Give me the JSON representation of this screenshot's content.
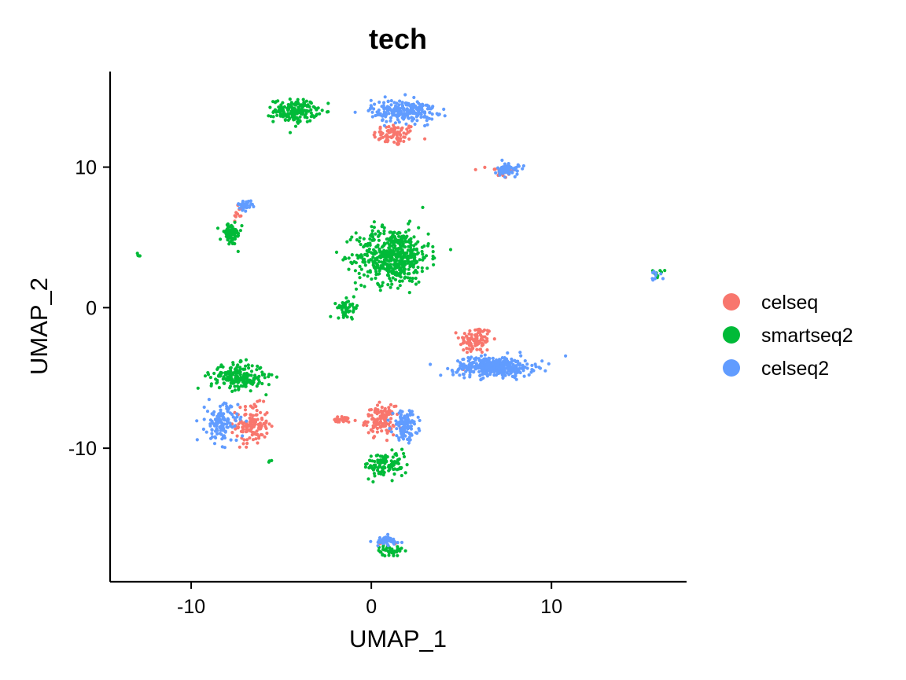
{
  "chart_data": {
    "type": "scatter",
    "title": "tech",
    "xlabel": "UMAP_1",
    "ylabel": "UMAP_2",
    "xlim": [
      -14.5,
      17.5
    ],
    "ylim": [
      -19.5,
      16.8
    ],
    "xticks": [
      -10,
      0,
      10
    ],
    "yticks": [
      -10,
      0,
      10
    ],
    "xtick_labels": [
      "-10",
      "0",
      "10"
    ],
    "ytick_labels": [
      "-10",
      "0",
      "10"
    ],
    "grid": false,
    "legend_position": "right",
    "colors": {
      "celseq": "#F8766D",
      "smartseq2": "#00BA38",
      "celseq2": "#619CFF"
    },
    "series": [
      {
        "name": "celseq",
        "color": "#F8766D",
        "clusters": [
          {
            "cx": 1.3,
            "cy": 12.3,
            "sx": 0.6,
            "sy": 0.4,
            "n": 80
          },
          {
            "cx": 7.2,
            "cy": 9.7,
            "sx": 0.35,
            "sy": 0.25,
            "n": 25
          },
          {
            "cx": -7.4,
            "cy": 6.7,
            "sx": 0.15,
            "sy": 0.4,
            "n": 10
          },
          {
            "cx": 5.8,
            "cy": -2.3,
            "sx": 0.45,
            "sy": 0.5,
            "n": 100
          },
          {
            "cx": -6.6,
            "cy": -8.3,
            "sx": 0.45,
            "sy": 0.7,
            "n": 130
          },
          {
            "cx": 0.5,
            "cy": -8.0,
            "sx": 0.4,
            "sy": 0.5,
            "n": 120
          },
          {
            "cx": -1.6,
            "cy": -8.0,
            "sx": 0.4,
            "sy": 0.12,
            "n": 25
          },
          {
            "cx": 1.0,
            "cy": -16.7,
            "sx": 0.35,
            "sy": 0.12,
            "n": 12
          }
        ]
      },
      {
        "name": "smartseq2",
        "color": "#00BA38",
        "clusters": [
          {
            "cx": -4.2,
            "cy": 14.0,
            "sx": 0.6,
            "sy": 0.4,
            "n": 170
          },
          {
            "cx": -7.8,
            "cy": 5.2,
            "sx": 0.3,
            "sy": 0.4,
            "n": 70
          },
          {
            "cx": 1.2,
            "cy": 3.7,
            "sx": 1.0,
            "sy": 1.0,
            "n": 520
          },
          {
            "cx": -1.3,
            "cy": 0.0,
            "sx": 0.3,
            "sy": 0.3,
            "n": 50
          },
          {
            "cx": -12.9,
            "cy": 3.7,
            "sx": 0.08,
            "sy": 0.08,
            "n": 5
          },
          {
            "cx": 15.9,
            "cy": 2.4,
            "sx": 0.2,
            "sy": 0.18,
            "n": 8
          },
          {
            "cx": -7.4,
            "cy": -4.9,
            "sx": 0.75,
            "sy": 0.45,
            "n": 210
          },
          {
            "cx": 0.8,
            "cy": -11.2,
            "sx": 0.6,
            "sy": 0.45,
            "n": 110
          },
          {
            "cx": 1.0,
            "cy": -17.3,
            "sx": 0.35,
            "sy": 0.18,
            "n": 40
          },
          {
            "cx": -5.6,
            "cy": -10.9,
            "sx": 0.05,
            "sy": 0.05,
            "n": 3
          }
        ]
      },
      {
        "name": "celseq2",
        "color": "#619CFF",
        "clusters": [
          {
            "cx": 1.8,
            "cy": 14.0,
            "sx": 0.9,
            "sy": 0.4,
            "n": 230
          },
          {
            "cx": 7.6,
            "cy": 9.8,
            "sx": 0.3,
            "sy": 0.25,
            "n": 60
          },
          {
            "cx": -7.0,
            "cy": 7.3,
            "sx": 0.2,
            "sy": 0.15,
            "n": 35
          },
          {
            "cx": 6.8,
            "cy": -4.2,
            "sx": 1.1,
            "sy": 0.35,
            "n": 380
          },
          {
            "cx": -8.3,
            "cy": -8.2,
            "sx": 0.45,
            "sy": 0.7,
            "n": 130
          },
          {
            "cx": 1.9,
            "cy": -8.4,
            "sx": 0.35,
            "sy": 0.5,
            "n": 110
          },
          {
            "cx": 0.8,
            "cy": -16.6,
            "sx": 0.4,
            "sy": 0.18,
            "n": 55
          },
          {
            "cx": 15.7,
            "cy": 2.2,
            "sx": 0.2,
            "sy": 0.18,
            "n": 10
          }
        ]
      }
    ]
  }
}
